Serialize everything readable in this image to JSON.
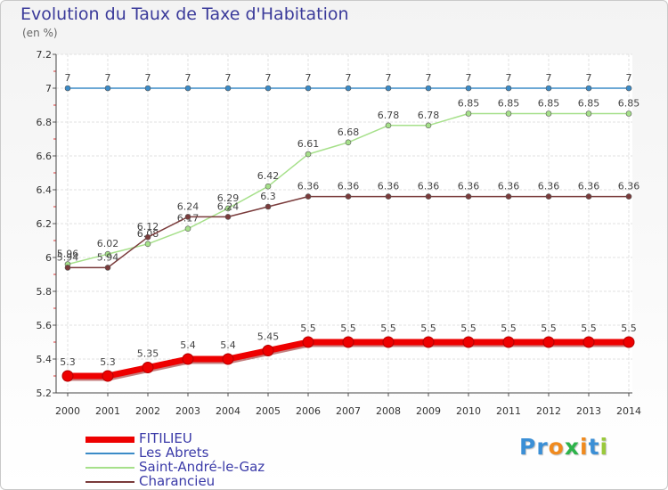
{
  "chart_data": {
    "type": "line",
    "title": "Evolution du Taux de Taxe d'Habitation",
    "ylabel": "(en %)",
    "xlabel": "",
    "ylim": [
      5.2,
      7.2
    ],
    "yticks": [
      "5.2",
      "5.4",
      "5.6",
      "5.8",
      "6",
      "6.2",
      "6.4",
      "6.6",
      "6.8",
      "7",
      "7.2"
    ],
    "y_tick_values": [
      5.2,
      5.4,
      5.6,
      5.8,
      6.0,
      6.2,
      6.4,
      6.6,
      6.8,
      7.0,
      7.2
    ],
    "x": [
      "2000",
      "2001",
      "2002",
      "2003",
      "2004",
      "2005",
      "2006",
      "2007",
      "2008",
      "2009",
      "2010",
      "2011",
      "2012",
      "2013",
      "2014"
    ],
    "grid": true,
    "legend_position": "bottom-left",
    "series": [
      {
        "name": "Les Abrets",
        "color": "#3b8bc7",
        "values": [
          7,
          7,
          7,
          7,
          7,
          7,
          7,
          7,
          7,
          7,
          7,
          7,
          7,
          7,
          7
        ],
        "labels": [
          "7",
          "7",
          "7",
          "7",
          "7",
          "7",
          "7",
          "7",
          "7",
          "7",
          "7",
          "7",
          "7",
          "7",
          "7"
        ]
      },
      {
        "name": "Saint-André-le-Gaz",
        "color": "#a6e08a",
        "values": [
          5.96,
          6.02,
          6.08,
          6.17,
          6.29,
          6.42,
          6.61,
          6.68,
          6.78,
          6.78,
          6.85,
          6.85,
          6.85,
          6.85,
          6.85
        ],
        "labels": [
          "5.96",
          "6.02",
          "6.08",
          "6.17",
          "6.29",
          "6.42",
          "6.61",
          "6.68",
          "6.78",
          "6.78",
          "6.85",
          "6.85",
          "6.85",
          "6.85",
          "6.85"
        ]
      },
      {
        "name": "Charancieu",
        "color": "#7a3b3b",
        "values": [
          5.94,
          5.94,
          6.12,
          6.24,
          6.24,
          6.3,
          6.36,
          6.36,
          6.36,
          6.36,
          6.36,
          6.36,
          6.36,
          6.36,
          6.36
        ],
        "labels": [
          "5.94",
          "5.94",
          "6.12",
          "6.24",
          "6.24",
          "6.3",
          "6.36",
          "6.36",
          "6.36",
          "6.36",
          "6.36",
          "6.36",
          "6.36",
          "6.36",
          "6.36"
        ]
      },
      {
        "name": "FITILIEU",
        "color": "#ee0000",
        "values": [
          5.3,
          5.3,
          5.35,
          5.4,
          5.4,
          5.45,
          5.5,
          5.5,
          5.5,
          5.5,
          5.5,
          5.5,
          5.5,
          5.5,
          5.5
        ],
        "labels": [
          "5.3",
          "5.3",
          "5.35",
          "5.4",
          "5.4",
          "5.45",
          "5.5",
          "5.5",
          "5.5",
          "5.5",
          "5.5",
          "5.5",
          "5.5",
          "5.5",
          "5.5"
        ]
      }
    ]
  },
  "legend": [
    {
      "label": "FITILIEU",
      "color": "#ee0000",
      "width": 7
    },
    {
      "label": "Les Abrets",
      "color": "#3b8bc7",
      "width": 2
    },
    {
      "label": "Saint-André-le-Gaz",
      "color": "#a6e08a",
      "width": 2
    },
    {
      "label": "Charancieu",
      "color": "#7a3b3b",
      "width": 2
    }
  ],
  "branding": {
    "logo_letters": [
      "P",
      "r",
      "o",
      "x",
      "i",
      "t",
      "i"
    ],
    "logo_colors": [
      "#3b8fd6",
      "#3b8fd6",
      "#f08a1e",
      "#2db34a",
      "#f08a1e",
      "#3b8fd6",
      "#9ac93b"
    ]
  }
}
